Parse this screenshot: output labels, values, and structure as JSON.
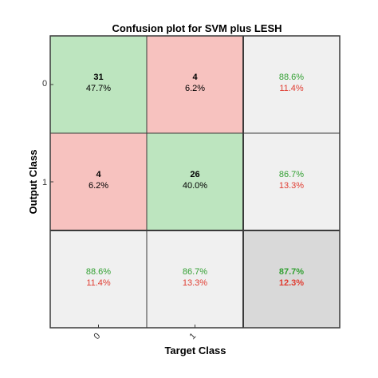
{
  "chart_data": {
    "type": "heatmap",
    "title": "Confusion plot for SVM plus LESH",
    "xlabel": "Target Class",
    "ylabel": "Output Class",
    "x_tick_labels": [
      "0",
      "1"
    ],
    "y_tick_labels": [
      "0",
      "1"
    ],
    "matrix": [
      [
        {
          "count": "31",
          "pct": "47.7%"
        },
        {
          "count": "4",
          "pct": "6.2%"
        }
      ],
      [
        {
          "count": "4",
          "pct": "6.2%"
        },
        {
          "count": "26",
          "pct": "40.0%"
        }
      ]
    ],
    "row_summary": [
      {
        "correct": "88.6%",
        "incorrect": "11.4%"
      },
      {
        "correct": "86.7%",
        "incorrect": "13.3%"
      }
    ],
    "column_summary": [
      {
        "correct": "88.6%",
        "incorrect": "11.4%"
      },
      {
        "correct": "86.7%",
        "incorrect": "13.3%"
      }
    ],
    "overall": {
      "correct": "87.7%",
      "incorrect": "12.3%"
    },
    "colors": {
      "correct_cell": "#bde5bf",
      "incorrect_cell": "#f7c2bf",
      "summary_cell": "#f0f0f0",
      "overall_cell": "#d9d9d9",
      "correct_text": "#33a033",
      "incorrect_text": "#e03c31"
    }
  }
}
